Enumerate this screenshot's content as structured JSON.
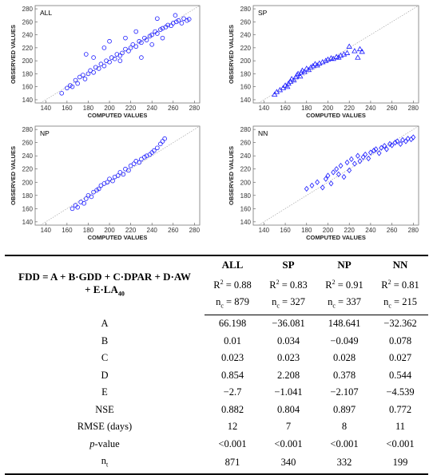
{
  "panels": [
    {
      "label": "ALL",
      "marker": "circle",
      "xlabel": "COMPUTED VALUES",
      "ylabel": "OBSERVED VALUES"
    },
    {
      "label": "SP",
      "marker": "triangle",
      "xlabel": "COMPUTED VALUES",
      "ylabel": "OBSERVED VALUES"
    },
    {
      "label": "NP",
      "marker": "circle",
      "xlabel": "COMPUTED VALUES",
      "ylabel": "OBSERVED VALUES"
    },
    {
      "label": "NN",
      "marker": "diamond",
      "xlabel": "COMPUTED VALUES",
      "ylabel": "OBSERVED VALUES"
    }
  ],
  "chart_data": [
    {
      "type": "scatter",
      "title": "ALL",
      "xlabel": "COMPUTED VALUES",
      "ylabel": "OBSERVED VALUES",
      "xlim": [
        130,
        285
      ],
      "ylim": [
        135,
        285
      ],
      "xticks": [
        140,
        160,
        180,
        200,
        220,
        240,
        260,
        280
      ],
      "yticks": [
        140,
        160,
        180,
        200,
        220,
        240,
        260,
        280
      ],
      "reference_line": "1:1",
      "series": [
        {
          "marker": "circle",
          "color": "#1a1aff",
          "x": [
            155,
            160,
            163,
            165,
            168,
            170,
            172,
            175,
            177,
            180,
            182,
            185,
            187,
            190,
            192,
            195,
            197,
            200,
            202,
            205,
            207,
            210,
            212,
            215,
            218,
            220,
            222,
            225,
            228,
            230,
            233,
            235,
            238,
            240,
            243,
            245,
            248,
            250,
            253,
            255,
            258,
            260,
            263,
            265,
            268,
            270,
            273,
            275,
            178,
            185,
            195,
            200,
            210,
            215,
            225,
            230,
            240,
            245,
            250,
            262
          ],
          "y": [
            150,
            158,
            162,
            160,
            170,
            165,
            175,
            178,
            172,
            180,
            185,
            182,
            190,
            188,
            195,
            192,
            200,
            198,
            205,
            203,
            210,
            208,
            212,
            218,
            215,
            220,
            225,
            222,
            230,
            228,
            235,
            232,
            238,
            240,
            245,
            242,
            248,
            250,
            252,
            255,
            254,
            258,
            260,
            262,
            258,
            265,
            262,
            264,
            210,
            205,
            220,
            230,
            200,
            235,
            245,
            205,
            225,
            265,
            235,
            270
          ]
        }
      ]
    },
    {
      "type": "scatter",
      "title": "SP",
      "xlabel": "COMPUTED VALUES",
      "ylabel": "OBSERVED VALUES",
      "xlim": [
        130,
        285
      ],
      "ylim": [
        135,
        285
      ],
      "xticks": [
        140,
        160,
        180,
        200,
        220,
        240,
        260,
        280
      ],
      "yticks": [
        140,
        160,
        180,
        200,
        220,
        240,
        260,
        280
      ],
      "reference_line": "1:1",
      "series": [
        {
          "marker": "triangle",
          "color": "#1a1aff",
          "x": [
            150,
            152,
            155,
            158,
            160,
            162,
            163,
            165,
            166,
            168,
            170,
            171,
            172,
            174,
            175,
            176,
            178,
            180,
            182,
            184,
            186,
            188,
            190,
            192,
            195,
            198,
            200,
            203,
            205,
            208,
            210,
            212,
            215,
            218,
            220,
            225,
            228,
            230,
            232
          ],
          "y": [
            148,
            152,
            155,
            158,
            162,
            160,
            165,
            168,
            172,
            170,
            175,
            178,
            180,
            176,
            182,
            185,
            183,
            188,
            186,
            190,
            192,
            195,
            193,
            196,
            198,
            200,
            202,
            204,
            203,
            206,
            205,
            208,
            210,
            212,
            222,
            215,
            205,
            218,
            214
          ]
        }
      ]
    },
    {
      "type": "scatter",
      "title": "NP",
      "xlabel": "COMPUTED VALUES",
      "ylabel": "OBSERVED VALUES",
      "xlim": [
        130,
        285
      ],
      "ylim": [
        135,
        285
      ],
      "xticks": [
        140,
        160,
        180,
        200,
        220,
        240,
        260,
        280
      ],
      "yticks": [
        140,
        160,
        180,
        200,
        220,
        240,
        260,
        280
      ],
      "reference_line": "1:1",
      "series": [
        {
          "marker": "circle",
          "color": "#1a1aff",
          "x": [
            165,
            168,
            170,
            173,
            176,
            178,
            180,
            183,
            185,
            188,
            190,
            192,
            195,
            198,
            200,
            203,
            205,
            208,
            210,
            213,
            215,
            218,
            220,
            223,
            225,
            228,
            230,
            233,
            235,
            238,
            240,
            242,
            245,
            248,
            250,
            252
          ],
          "y": [
            160,
            165,
            162,
            170,
            168,
            175,
            180,
            178,
            185,
            188,
            190,
            195,
            198,
            200,
            205,
            202,
            208,
            210,
            215,
            212,
            220,
            218,
            225,
            228,
            232,
            230,
            235,
            238,
            240,
            242,
            245,
            248,
            252,
            258,
            262,
            266
          ]
        }
      ]
    },
    {
      "type": "scatter",
      "title": "NN",
      "xlabel": "COMPUTED VALUES",
      "ylabel": "OBSERVED VALUES",
      "xlim": [
        130,
        285
      ],
      "ylim": [
        135,
        285
      ],
      "xticks": [
        140,
        160,
        180,
        200,
        220,
        240,
        260,
        280
      ],
      "yticks": [
        140,
        160,
        180,
        200,
        220,
        240,
        260,
        280
      ],
      "reference_line": "1:1",
      "series": [
        {
          "marker": "diamond",
          "color": "#1a1aff",
          "x": [
            180,
            185,
            190,
            195,
            198,
            200,
            203,
            205,
            208,
            210,
            212,
            215,
            218,
            220,
            222,
            225,
            228,
            230,
            233,
            235,
            238,
            240,
            243,
            245,
            248,
            250,
            253,
            255,
            258,
            260,
            263,
            265,
            268,
            270,
            273,
            275,
            278,
            280
          ],
          "y": [
            190,
            195,
            200,
            192,
            205,
            210,
            198,
            215,
            220,
            212,
            225,
            208,
            230,
            218,
            235,
            228,
            240,
            232,
            238,
            242,
            236,
            245,
            248,
            250,
            244,
            252,
            255,
            250,
            258,
            256,
            260,
            262,
            258,
            264,
            262,
            266,
            265,
            268
          ]
        }
      ]
    }
  ],
  "table": {
    "formula_line1": "FDD = A + B·GDD + C·DPAR + D·AW",
    "formula_line2": "+ E·LA",
    "formula_sub": "40",
    "columns": [
      "ALL",
      "SP",
      "NP",
      "NN"
    ],
    "r2": [
      "0.88",
      "0.83",
      "0.91",
      "0.81"
    ],
    "nc": [
      "879",
      "327",
      "337",
      "215"
    ],
    "rows": [
      {
        "label": "A",
        "values": [
          "66.198",
          "−36.081",
          "148.641",
          "−32.362"
        ]
      },
      {
        "label": "B",
        "values": [
          "0.01",
          "0.034",
          "−0.049",
          "0.078"
        ]
      },
      {
        "label": "C",
        "values": [
          "0.023",
          "0.023",
          "0.028",
          "0.027"
        ]
      },
      {
        "label": "D",
        "values": [
          "0.854",
          "2.208",
          "0.378",
          "0.544"
        ]
      },
      {
        "label": "E",
        "values": [
          "−2.7",
          "−1.041",
          "−2.107",
          "−4.539"
        ]
      },
      {
        "label": "NSE",
        "values": [
          "0.882",
          "0.804",
          "0.897",
          "0.772"
        ]
      },
      {
        "label": "RMSE (days)",
        "values": [
          "12",
          "7",
          "8",
          "11"
        ]
      },
      {
        "label": "p-value",
        "values": [
          "<0.001",
          "<0.001",
          "<0.001",
          "<0.001"
        ]
      },
      {
        "label": "nt",
        "values": [
          "871",
          "340",
          "332",
          "199"
        ]
      }
    ]
  }
}
